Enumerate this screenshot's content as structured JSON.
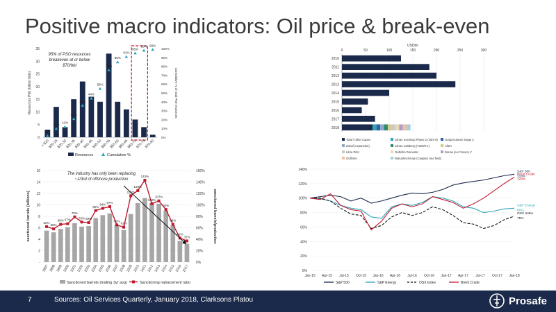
{
  "title": "Positive macro indicators: Oil price & break-even",
  "footer": {
    "page_number": "7",
    "sources": "Sources: Oil Services Quarterly, January 2018, Clarksons Platou",
    "logo_text": "Prosafe"
  },
  "colors": {
    "navy": "#1b2a4a",
    "teal": "#2aa6b8",
    "red": "#c0182b",
    "grey": "#a6a6a6",
    "light_blue": "#39c1dc"
  },
  "chart_data": [
    {
      "id": "breakeven",
      "type": "bar",
      "annotation": "95% of PSO resources breakeven at or below $70/bbl",
      "ylabel": "Resources P50 (billion bbls)",
      "y2label": "Cumulative % of total P50 resources",
      "ylim": [
        0,
        35
      ],
      "yticks": [
        0,
        5,
        10,
        15,
        20,
        25,
        30,
        35
      ],
      "y2ticks": [
        "0%",
        "10%",
        "20%",
        "30%",
        "40%",
        "50%",
        "60%",
        "70%",
        "80%",
        "90%",
        "100%"
      ],
      "categories": [
        "< $20",
        "$20-25",
        "$25-30",
        "$30-35",
        "$35-40",
        "$40-45",
        "$45-50",
        "$50-55",
        "$55-60",
        "$60-65",
        "$65-70",
        "$70-75",
        "$75-80"
      ],
      "series": [
        {
          "name": "Resources",
          "values": [
            3,
            12,
            4,
            15,
            22,
            16,
            14,
            33,
            14,
            11,
            7,
            4,
            1
          ]
        },
        {
          "name": "Cumulative %",
          "values": [
            2,
            10,
            12,
            21,
            36,
            44,
            55,
            76,
            85,
            91,
            95,
            98,
            99
          ]
        }
      ],
      "point_labels": [
        "2%",
        "10%",
        "12%",
        "21%",
        "36%",
        "44%",
        "55%",
        "76%",
        "85%",
        "91%",
        "95%",
        "98%",
        "99%"
      ],
      "highlight_categories": [
        "$65-70",
        "$70-75"
      ]
    },
    {
      "id": "capex",
      "type": "bar",
      "orientation": "horizontal",
      "xlabel": "USDbn",
      "xlim": [
        0,
        300
      ],
      "xticks": [
        0,
        50,
        100,
        150,
        200,
        250,
        300
      ],
      "categories": [
        "2010",
        "2011",
        "2012",
        "2013",
        "2014",
        "2015",
        "2016",
        "2017",
        "2018"
      ],
      "values": [
        125,
        185,
        200,
        240,
        100,
        55,
        42,
        70,
        65
      ],
      "segments_2018": [
        {
          "name": "Total / other Capex",
          "value": 65,
          "color": "#1b2a4a"
        },
        {
          "name": "Johan Sverdrup Phase 2 (16/2-6)",
          "value": 8,
          "color": "#2aa6b8"
        },
        {
          "name": "Gorgon/Jansz Stage 2",
          "value": 8,
          "color": "#2f5fa8"
        },
        {
          "name": "Zohaf (expansion)",
          "value": 8,
          "color": "#8ea9c8"
        },
        {
          "name": "Johan Castberg (7220/8-1)",
          "value": 8,
          "color": "#2e8b6a"
        },
        {
          "name": "Afam",
          "value": 8,
          "color": "#d7c98e"
        },
        {
          "name": "Libra Pilot",
          "value": 8,
          "color": "#c9c9c9"
        },
        {
          "name": "Golfinho Domestic",
          "value": 8,
          "color": "#e8d9b8"
        },
        {
          "name": "Bonas (ex-Franco) V",
          "value": 8,
          "color": "#b0a0c8"
        },
        {
          "name": "Golfinho",
          "value": 8,
          "color": "#f0c0a0"
        },
        {
          "name": "Rakushechnoye (Caspian Sea field)",
          "value": 8,
          "color": "#a0d0e0"
        }
      ]
    },
    {
      "id": "sanctioned",
      "type": "bar",
      "annotation": "The industry has only been replacing ~1/3rd of offshore production",
      "ylabel": "sanctioned barrels (billions)",
      "y2label": "sanctioned barrels/production",
      "ylim": [
        0,
        16
      ],
      "yticks": [
        "-",
        "2",
        "4",
        "6",
        "8",
        "10",
        "12",
        "14",
        "16"
      ],
      "y2ticks": [
        "0%",
        "20%",
        "40%",
        "60%",
        "80%",
        "100%",
        "120%",
        "140%",
        "160%"
      ],
      "categories": [
        "1997",
        "1998",
        "1999",
        "2000",
        "2001",
        "2002",
        "2003",
        "2004",
        "2005",
        "2006",
        "2007",
        "2008",
        "2009",
        "2010",
        "2011",
        "2012",
        "2013",
        "2014",
        "2015",
        "2016",
        "2017"
      ],
      "series": [
        {
          "name": "Sanctioned barrels (trailing 3yr avg)",
          "values": [
            5.5,
            5.2,
            5.8,
            6.1,
            6.8,
            6.2,
            6.3,
            7.7,
            8.2,
            8.5,
            6.5,
            5.6,
            8.4,
            10.3,
            11.2,
            10.3,
            10.2,
            9.0,
            6.4,
            3.7,
            3.2
          ]
        },
        {
          "name": "Sanctioning replacement ratio",
          "values": [
            62,
            58,
            66,
            67,
            79,
            70,
            69,
            90,
            94,
            97,
            65,
            61,
            116,
            125,
            143,
            102,
            107,
            92,
            66,
            42,
            37
          ]
        }
      ],
      "point_labels": [
        "62%",
        "58%",
        "66%",
        "67%",
        "79%",
        "70%",
        "69%",
        "90%",
        "94%",
        "97%",
        "65%",
        "61%",
        "116%",
        "125%",
        "143%",
        "102%",
        "107%",
        "92%",
        "66%",
        "42%",
        "37%"
      ]
    },
    {
      "id": "indices",
      "type": "line",
      "xlabels": [
        "Jan-15",
        "Apr-15",
        "Jul-15",
        "Oct-15",
        "Jan-16",
        "Apr-16",
        "Jul-16",
        "Oct-16",
        "Jan-17",
        "Apr-17",
        "Jul-17",
        "Oct-17",
        "Jan-18"
      ],
      "yticks": [
        "0%",
        "20%",
        "40%",
        "60%",
        "80%",
        "100%",
        "120%",
        "140%"
      ],
      "ylim": [
        0,
        140
      ],
      "series": [
        {
          "name": "S&P 500",
          "end_label": "S&P 500",
          "end_value": "133%",
          "color": "#1b2a4a",
          "dash": "solid",
          "values": [
            100,
            102,
            104,
            102,
            96,
            100,
            93,
            96,
            100,
            104,
            107,
            106,
            108,
            112,
            118,
            121,
            123,
            125,
            128,
            131,
            133
          ]
        },
        {
          "name": "S&P Energy",
          "end_label": "S&P Energy",
          "end_value": "86%",
          "color": "#2aa6b8",
          "dash": "solid",
          "values": [
            100,
            99,
            96,
            90,
            86,
            84,
            74,
            72,
            88,
            92,
            90,
            94,
            102,
            100,
            96,
            88,
            86,
            80,
            82,
            85,
            86
          ]
        },
        {
          "name": "OSX Index",
          "end_label": "OSX Index",
          "end_value": "75%",
          "color": "#111111",
          "dash": "dashed",
          "values": [
            100,
            100,
            96,
            86,
            78,
            76,
            58,
            62,
            74,
            80,
            76,
            80,
            88,
            84,
            76,
            66,
            64,
            58,
            62,
            70,
            75
          ]
        },
        {
          "name": "Brent Crude",
          "end_label": "Brent Crude",
          "end_value": "129%",
          "color": "#c0182b",
          "dash": "solid",
          "values": [
            100,
            98,
            106,
            90,
            84,
            82,
            56,
            68,
            86,
            92,
            88,
            92,
            102,
            98,
            94,
            86,
            92,
            100,
            110,
            120,
            129
          ]
        }
      ]
    }
  ]
}
